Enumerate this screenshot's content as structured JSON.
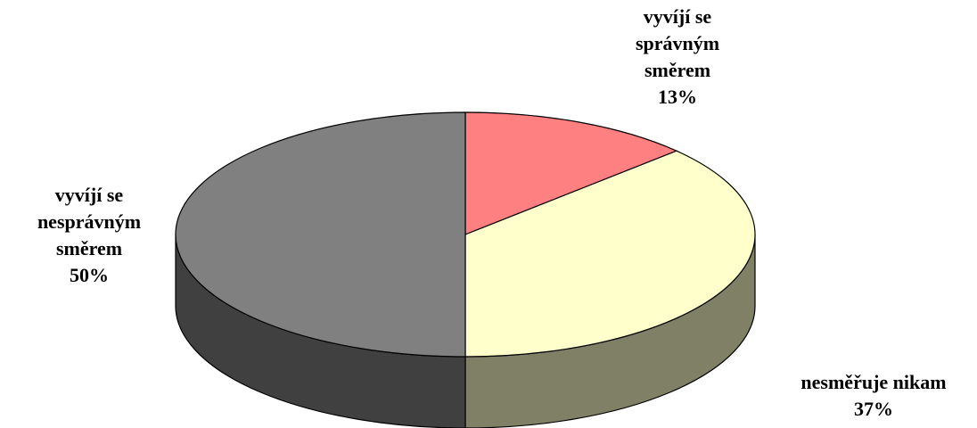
{
  "chart_data": {
    "type": "pie3d",
    "categories": [
      "vyvíjí se správným směrem",
      "nesměřuje nikam",
      "vyvíjí se nesprávným směrem"
    ],
    "values": [
      13,
      37,
      50
    ],
    "value_labels": [
      "13%",
      "37%",
      "50%"
    ],
    "colors": [
      "#ff8080",
      "#ffffcc",
      "#808080"
    ]
  }
}
